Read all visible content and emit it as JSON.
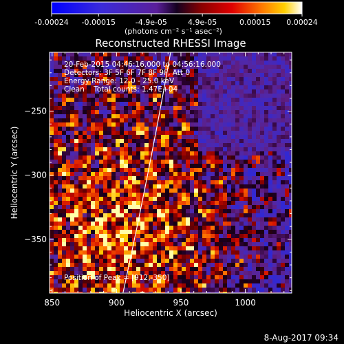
{
  "chart_data": {
    "type": "heatmap",
    "title": "Reconstructed RHESSI Image",
    "xlabel": "Heliocentric X (arcsec)",
    "ylabel": "Heliocentric Y (arcsec)",
    "xlim": [
      848,
      1036
    ],
    "ylim": [
      -392,
      -204
    ],
    "xticks": [
      850,
      900,
      950,
      1000
    ],
    "yticks": [
      -250,
      -300,
      -350
    ],
    "annotations": [
      "20-Feb-2015 04:46:16.000 to 04:56:16.000",
      "Detectors: 3F 5F 6F 7F 8F 9F, Att 0",
      "Energy Range: 12.0 - 25.0 keV",
      "Clean    Total counts: 1.47E+04"
    ],
    "peak_label": "Position of Peak = [912,-350]",
    "peak": [
      912,
      -350
    ],
    "limb_curve": {
      "x": [
        905,
        925,
        942
      ],
      "y": [
        -392,
        -300,
        -204
      ]
    },
    "colorbar": {
      "ticks": [
        "-0.00024",
        "-0.00015",
        "-4.9e-05",
        "4.9e-05",
        "0.00015",
        "0.00024"
      ],
      "unit": "(photons cm⁻² s⁻¹ asec⁻²)",
      "range": [
        -0.00024,
        0.00024
      ]
    },
    "grid": false
  },
  "footer": {
    "date": "8-Aug-2017 09:34"
  }
}
